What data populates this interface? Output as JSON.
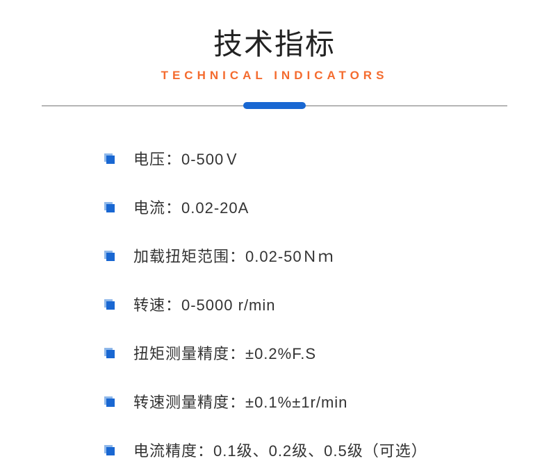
{
  "header": {
    "title_cn": "技术指标",
    "title_en": "TECHNICAL INDICATORS"
  },
  "colors": {
    "title_cn": "#222222",
    "title_en": "#f46b2e",
    "divider_line": "#757575",
    "divider_center": "#1967d2",
    "bullet_primary": "#1967d2",
    "bullet_secondary": "#8fb8ea",
    "text": "#333333",
    "background": "#ffffff"
  },
  "typography": {
    "title_cn_size": 42,
    "title_en_size": 17,
    "spec_text_size": 22,
    "title_en_letter_spacing": 6
  },
  "specs": [
    {
      "text": "电压：0-500Ｖ"
    },
    {
      "text": "电流：0.02-20A"
    },
    {
      "text": "加载扭矩范围：0.02-50Ｎｍ"
    },
    {
      "text": "转速：0-5000 r/min"
    },
    {
      "text": "扭矩测量精度：±0.2%F.S"
    },
    {
      "text": "转速测量精度：±0.1%±1r/min"
    },
    {
      "text": "电流精度：0.1级、0.2级、0.5级（可选）"
    }
  ]
}
